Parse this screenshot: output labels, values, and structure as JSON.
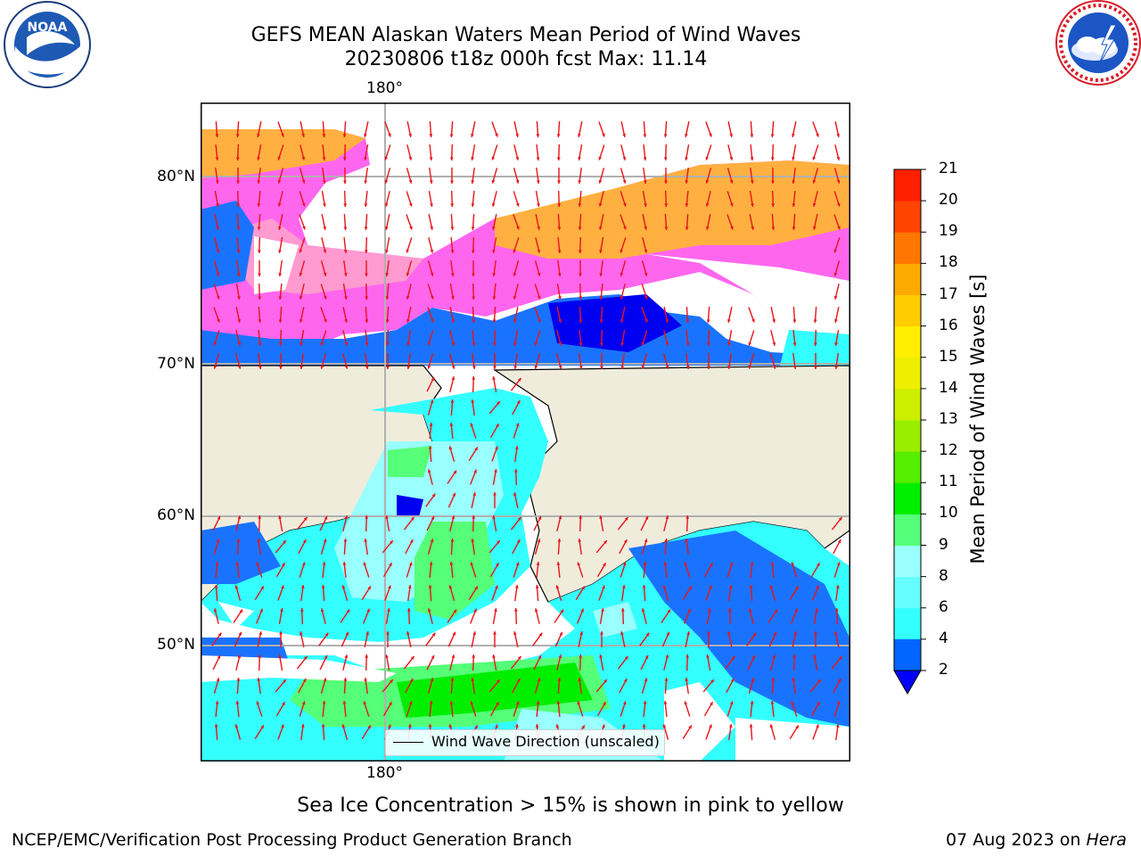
{
  "title": {
    "line1": "GEFS MEAN Alaskan Waters Mean Period of Wind Waves",
    "line2": "20230806 t18z 000h fcst   Max: 11.14"
  },
  "logos": {
    "left": "NOAA",
    "left_ring": "NATIONAL OCEANIC AND ATMOSPHERIC ADMINISTRATION · U.S. DEPARTMENT OF COMMERCE",
    "right_ring": "NATIONAL WEATHER SERVICE"
  },
  "map": {
    "lon_labels": [
      "180°",
      "180°"
    ],
    "lat_labels": [
      "80°N",
      "70°N",
      "60°N",
      "50°N"
    ],
    "colors": {
      "land": "#efecdc",
      "ice_pink": "#ff66ee",
      "ice_orange": "#ffb040",
      "vector": "#e8141a"
    }
  },
  "legend": {
    "label": "Wind Wave Direction (unscaled)"
  },
  "colorbar": {
    "label": "Mean Period of Wind Waves [s]",
    "ticks": [
      "2",
      "4",
      "6",
      "8",
      "9",
      "10",
      "11",
      "12",
      "13",
      "14",
      "15",
      "16",
      "17",
      "18",
      "19",
      "20",
      "21"
    ],
    "colors": [
      "#0066ff",
      "#00e5ff",
      "#33ffff",
      "#66ffff",
      "#99ffff",
      "#55ff77",
      "#00ee00",
      "#55ee00",
      "#99ee00",
      "#ccee00",
      "#eeee00",
      "#ffee00",
      "#ffcc00",
      "#ffaa00",
      "#ff7700",
      "#ff4400",
      "#ff2000",
      "#ff0000"
    ],
    "extend_color": "#0000ff"
  },
  "caption": "Sea Ice Concentration > 15% is shown in pink to yellow",
  "footer": {
    "left": "NCEP/EMC/Verification Post Processing Product Generation Branch",
    "right_date": "07 Aug 2023 on ",
    "right_host": "Hera"
  }
}
